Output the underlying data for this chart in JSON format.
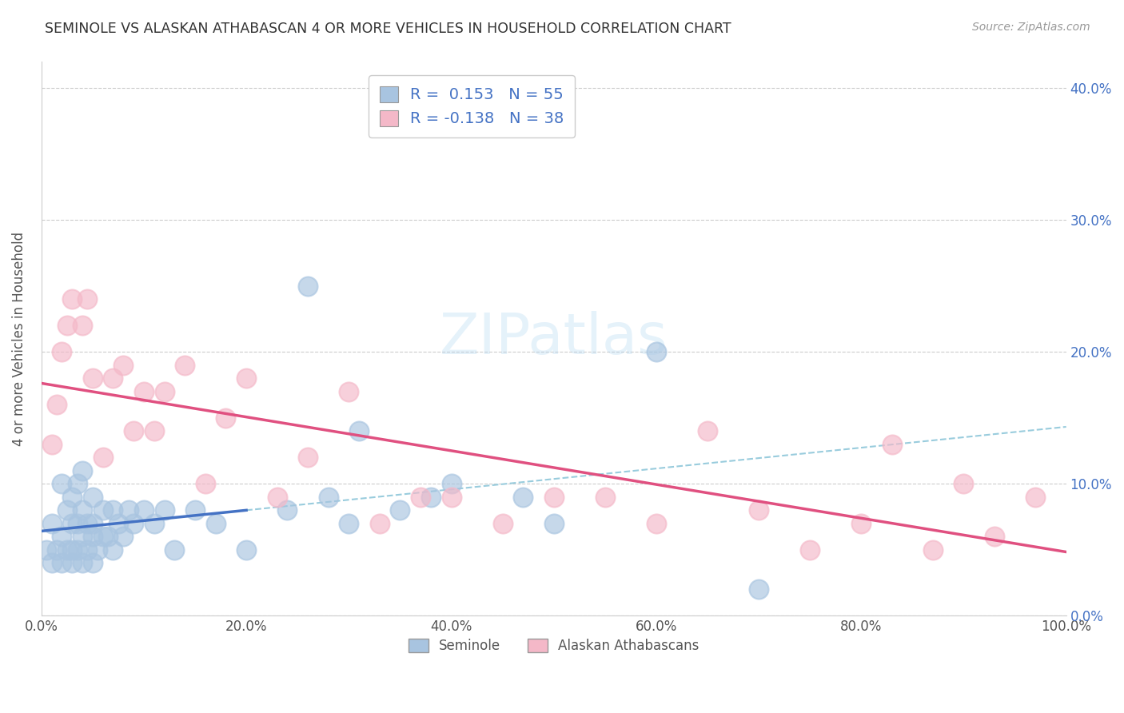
{
  "title": "SEMINOLE VS ALASKAN ATHABASCAN 4 OR MORE VEHICLES IN HOUSEHOLD CORRELATION CHART",
  "source": "Source: ZipAtlas.com",
  "ylabel": "4 or more Vehicles in Household",
  "xlim": [
    0,
    1.0
  ],
  "ylim": [
    0,
    0.42
  ],
  "xticks": [
    0.0,
    0.2,
    0.4,
    0.6,
    0.8,
    1.0
  ],
  "xticklabels": [
    "0.0%",
    "20.0%",
    "40.0%",
    "60.0%",
    "80.0%",
    "100.0%"
  ],
  "yticks": [
    0.0,
    0.1,
    0.2,
    0.3,
    0.4
  ],
  "yticklabels": [
    "0.0%",
    "10.0%",
    "20.0%",
    "30.0%",
    "40.0%"
  ],
  "seminole_color": "#a8c4e0",
  "athabascan_color": "#f4b8c8",
  "seminole_R": 0.153,
  "seminole_N": 55,
  "athabascan_R": -0.138,
  "athabascan_N": 38,
  "watermark": "ZIPatlas",
  "legend_labels": [
    "Seminole",
    "Alaskan Athabascans"
  ],
  "seminole_x": [
    0.005,
    0.01,
    0.01,
    0.015,
    0.02,
    0.02,
    0.02,
    0.025,
    0.025,
    0.03,
    0.03,
    0.03,
    0.03,
    0.035,
    0.035,
    0.035,
    0.04,
    0.04,
    0.04,
    0.04,
    0.045,
    0.045,
    0.05,
    0.05,
    0.05,
    0.05,
    0.055,
    0.06,
    0.06,
    0.065,
    0.07,
    0.07,
    0.075,
    0.08,
    0.085,
    0.09,
    0.1,
    0.11,
    0.12,
    0.13,
    0.15,
    0.17,
    0.2,
    0.24,
    0.26,
    0.28,
    0.3,
    0.31,
    0.35,
    0.38,
    0.4,
    0.47,
    0.5,
    0.6,
    0.7
  ],
  "seminole_y": [
    0.05,
    0.04,
    0.07,
    0.05,
    0.04,
    0.06,
    0.1,
    0.05,
    0.08,
    0.04,
    0.05,
    0.07,
    0.09,
    0.05,
    0.07,
    0.1,
    0.04,
    0.06,
    0.08,
    0.11,
    0.05,
    0.07,
    0.04,
    0.06,
    0.07,
    0.09,
    0.05,
    0.06,
    0.08,
    0.06,
    0.05,
    0.08,
    0.07,
    0.06,
    0.08,
    0.07,
    0.08,
    0.07,
    0.08,
    0.05,
    0.08,
    0.07,
    0.05,
    0.08,
    0.25,
    0.09,
    0.07,
    0.14,
    0.08,
    0.09,
    0.1,
    0.09,
    0.07,
    0.2,
    0.02
  ],
  "athabascan_x": [
    0.01,
    0.015,
    0.02,
    0.025,
    0.03,
    0.04,
    0.045,
    0.05,
    0.06,
    0.07,
    0.08,
    0.09,
    0.1,
    0.11,
    0.12,
    0.14,
    0.16,
    0.18,
    0.2,
    0.23,
    0.26,
    0.3,
    0.33,
    0.37,
    0.4,
    0.45,
    0.5,
    0.55,
    0.6,
    0.65,
    0.7,
    0.75,
    0.8,
    0.83,
    0.87,
    0.9,
    0.93,
    0.97
  ],
  "athabascan_y": [
    0.13,
    0.16,
    0.2,
    0.22,
    0.24,
    0.22,
    0.24,
    0.18,
    0.12,
    0.18,
    0.19,
    0.14,
    0.17,
    0.14,
    0.17,
    0.19,
    0.1,
    0.15,
    0.18,
    0.09,
    0.12,
    0.17,
    0.07,
    0.09,
    0.09,
    0.07,
    0.09,
    0.09,
    0.07,
    0.14,
    0.08,
    0.05,
    0.07,
    0.13,
    0.05,
    0.1,
    0.06,
    0.09
  ],
  "grid_color": "#cccccc",
  "trend_seminole_color": "#4472c4",
  "trend_athabascan_color": "#e05080",
  "trend_line_dashed_color": "#99ccdd"
}
